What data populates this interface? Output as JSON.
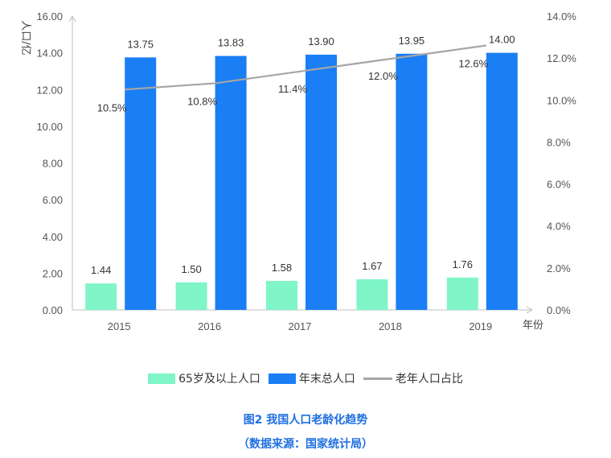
{
  "chart_data": {
    "type": "bar",
    "categories": [
      "2015",
      "2016",
      "2017",
      "2018",
      "2019"
    ],
    "series": [
      {
        "name": "65岁及以上人口",
        "type": "bar",
        "axis": "left",
        "color": "#7ff5c8",
        "values": [
          1.44,
          1.5,
          1.58,
          1.67,
          1.76
        ],
        "labels": [
          "1.44",
          "1.50",
          "1.58",
          "1.67",
          "1.76"
        ]
      },
      {
        "name": "年末总人口",
        "type": "bar",
        "axis": "left",
        "color": "#1a7ef5",
        "values": [
          13.75,
          13.83,
          13.9,
          13.95,
          14.0
        ],
        "labels": [
          "13.75",
          "13.83",
          "13.90",
          "13.95",
          "14.00"
        ]
      },
      {
        "name": "老年人口占比",
        "type": "line",
        "axis": "right",
        "color": "#a6a6a6",
        "values": [
          10.5,
          10.8,
          11.4,
          12.0,
          12.6
        ],
        "labels": [
          "10.5%",
          "10.8%",
          "11.4%",
          "12.0%",
          "12.6%"
        ]
      }
    ],
    "ylabel": "人口/亿",
    "xlabel": "年份",
    "ylim": [
      0,
      16
    ],
    "yticks": [
      "0.00",
      "2.00",
      "4.00",
      "6.00",
      "8.00",
      "10.00",
      "12.00",
      "14.00",
      "16.00"
    ],
    "y2lim": [
      0,
      14
    ],
    "y2ticks": [
      "0.0%",
      "2.0%",
      "4.0%",
      "6.0%",
      "8.0%",
      "10.0%",
      "12.0%",
      "14.0%"
    ],
    "legend_position": "bottom",
    "grid": false
  },
  "caption": {
    "title": "图2  我国人口老龄化趋势",
    "source": "（数据来源：国家统计局）"
  },
  "colors": {
    "caption": "#1f6fe0",
    "axis": "#bfbfbf"
  }
}
